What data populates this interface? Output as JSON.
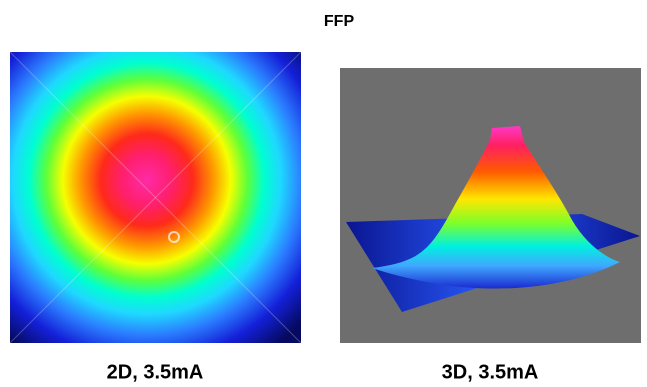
{
  "title": "FFP",
  "panels": [
    {
      "caption": "2D, 3.5mA"
    },
    {
      "caption": "3D, 3.5mA"
    }
  ]
}
